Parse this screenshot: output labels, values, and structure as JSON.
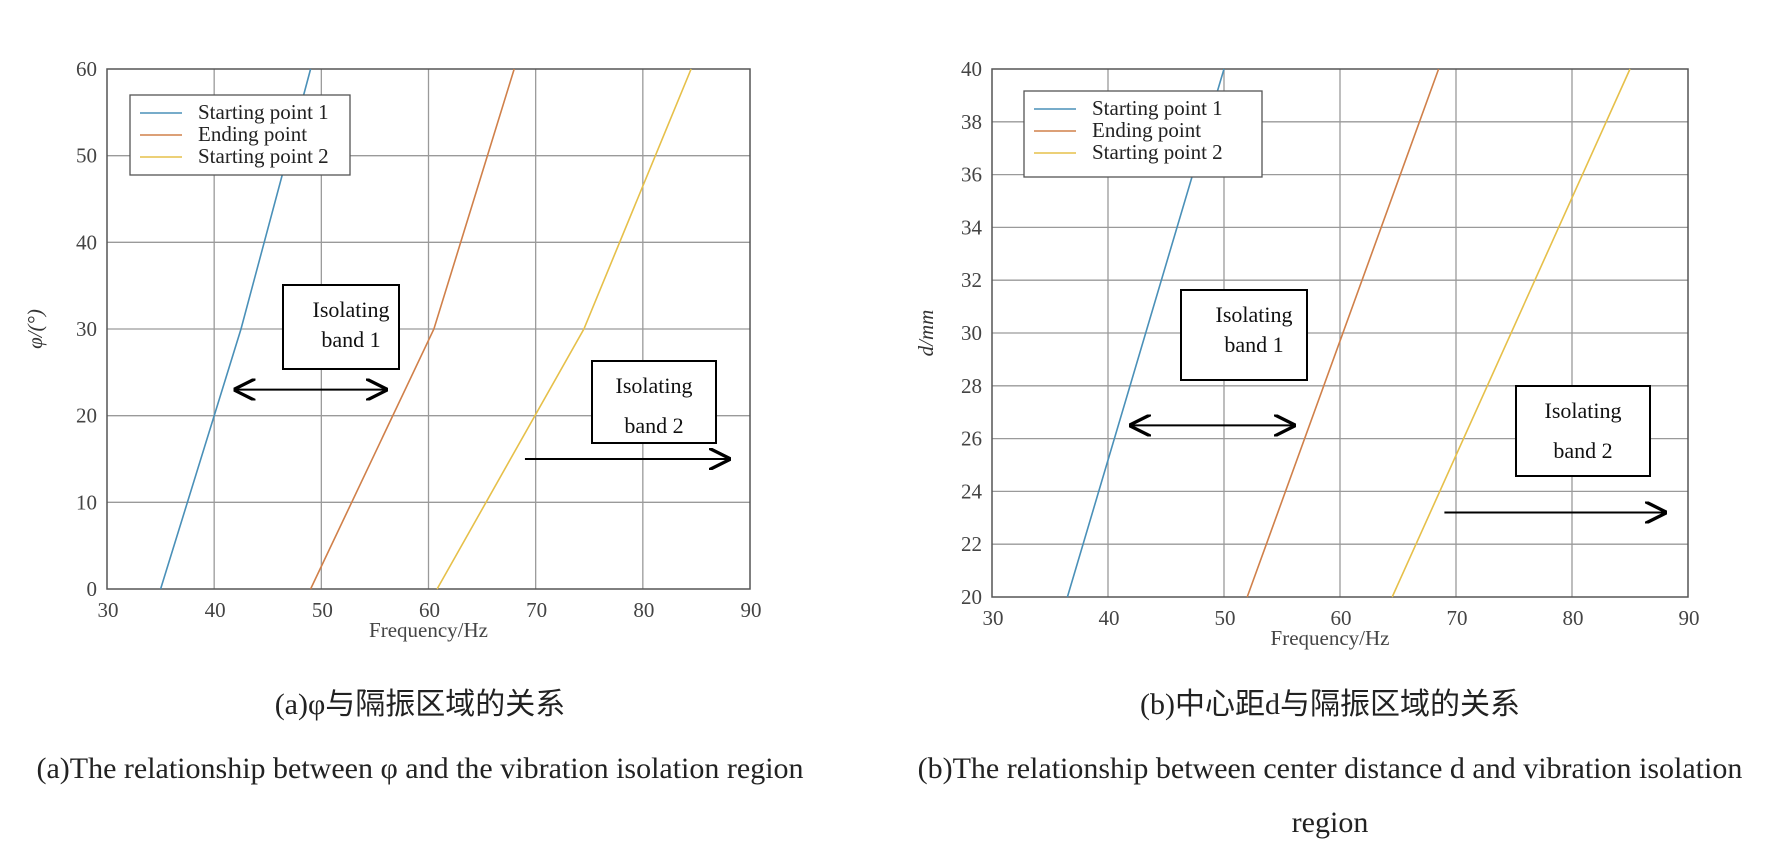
{
  "chart_data": [
    {
      "type": "line",
      "panel": "a",
      "xlabel": "Frequency/Hz",
      "ylabel": "φ/(°)",
      "xlim": [
        30,
        90
      ],
      "ylim": [
        0,
        60
      ],
      "xticks": [
        "30",
        "40",
        "50",
        "60",
        "70",
        "80",
        "90"
      ],
      "yticks": [
        "0",
        "10",
        "20",
        "30",
        "40",
        "50",
        "60"
      ],
      "grid": true,
      "legend_position": "top-left",
      "series": [
        {
          "name": "Starting point 1",
          "color": "#4a90b8",
          "x": [
            35,
            42.5,
            49
          ],
          "y": [
            0,
            30,
            60
          ]
        },
        {
          "name": "Ending point",
          "color": "#d0804a",
          "x": [
            49,
            60.5,
            68
          ],
          "y": [
            0,
            30,
            60
          ]
        },
        {
          "name": "Starting point 2",
          "color": "#e6c04a",
          "x": [
            60.8,
            74.5,
            84.5
          ],
          "y": [
            0,
            30,
            60
          ]
        }
      ],
      "annotations": [
        {
          "text_lines": [
            "Isolating",
            "band 1"
          ],
          "arrow": "double",
          "arrow_from": 42,
          "arrow_to": 56,
          "arrow_y": 23
        },
        {
          "text_lines": [
            "Isolating",
            "band 2"
          ],
          "arrow": "right",
          "arrow_from": 69,
          "arrow_to": 88,
          "arrow_y": 15
        }
      ],
      "caption_cn": "(a)φ与隔振区域的关系",
      "caption_en": "(a)The relationship between φ and the vibration isolation region"
    },
    {
      "type": "line",
      "panel": "b",
      "xlabel": "Frequency/Hz",
      "ylabel": "d/mm",
      "xlim": [
        30,
        90
      ],
      "ylim": [
        20,
        40
      ],
      "xticks": [
        "30",
        "40",
        "50",
        "60",
        "70",
        "80",
        "90"
      ],
      "yticks": [
        "20",
        "22",
        "24",
        "26",
        "28",
        "30",
        "32",
        "34",
        "36",
        "38",
        "40"
      ],
      "grid": true,
      "legend_position": "top-left",
      "series": [
        {
          "name": "Starting point 1",
          "color": "#4a90b8",
          "x": [
            36.5,
            50
          ],
          "y": [
            20,
            40
          ]
        },
        {
          "name": "Ending point",
          "color": "#d0804a",
          "x": [
            52,
            68.5
          ],
          "y": [
            20,
            40
          ]
        },
        {
          "name": "Starting point 2",
          "color": "#e6c04a",
          "x": [
            64.5,
            85
          ],
          "y": [
            20,
            40
          ]
        }
      ],
      "annotations": [
        {
          "text_lines": [
            "Isolating",
            "band 1"
          ],
          "arrow": "double",
          "arrow_from": 42,
          "arrow_to": 56,
          "arrow_y": 26.5
        },
        {
          "text_lines": [
            "Isolating",
            "band 2"
          ],
          "arrow": "right",
          "arrow_from": 69,
          "arrow_to": 88,
          "arrow_y": 23.2
        }
      ],
      "caption_cn": "(b)中心距d与隔振区域的关系",
      "caption_en": "(b)The relationship between center distance d and vibration isolation region"
    }
  ]
}
